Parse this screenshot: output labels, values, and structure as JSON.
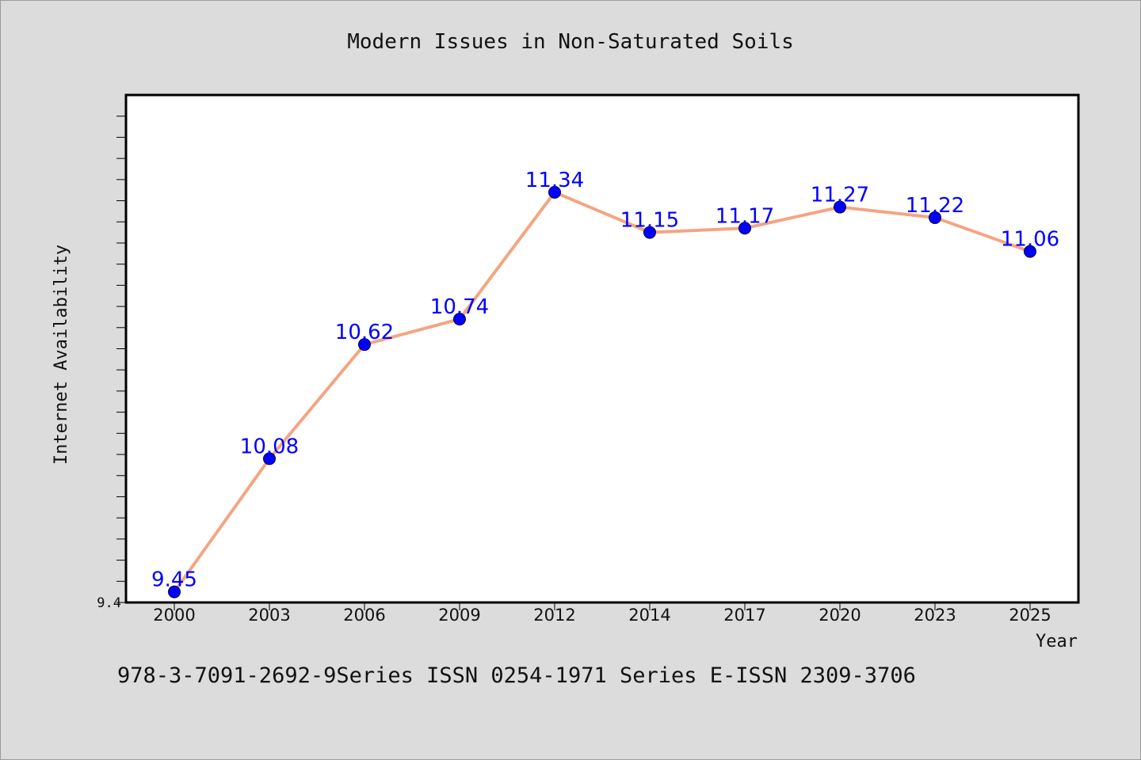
{
  "chart_data": {
    "type": "line",
    "title": "Modern Issues in Non-Saturated Soils",
    "xlabel": "Year",
    "ylabel": "Internet Availability",
    "categories": [
      "2000",
      "2003",
      "2006",
      "2009",
      "2012",
      "2014",
      "2017",
      "2020",
      "2023",
      "2025"
    ],
    "series": [
      {
        "values": [
          9.45,
          10.08,
          10.62,
          10.74,
          11.34,
          11.15,
          11.17,
          11.27,
          11.22,
          11.06
        ]
      }
    ],
    "data_labels": [
      "9.45",
      "10.08",
      "10.62",
      "10.74",
      "11.34",
      "11.15",
      "11.17",
      "11.27",
      "11.22",
      "11.06"
    ],
    "ylim": [
      9.4,
      11.8
    ],
    "y_tick_labels": [
      "9.4"
    ],
    "grid": false,
    "line_color": "#f4a582",
    "marker_color": "#0000ff",
    "label_color": "#0000ff"
  },
  "footer": {
    "text": "978-3-7091-2692-9Series ISSN 0254-1971 Series E-ISSN 2309-3706"
  }
}
